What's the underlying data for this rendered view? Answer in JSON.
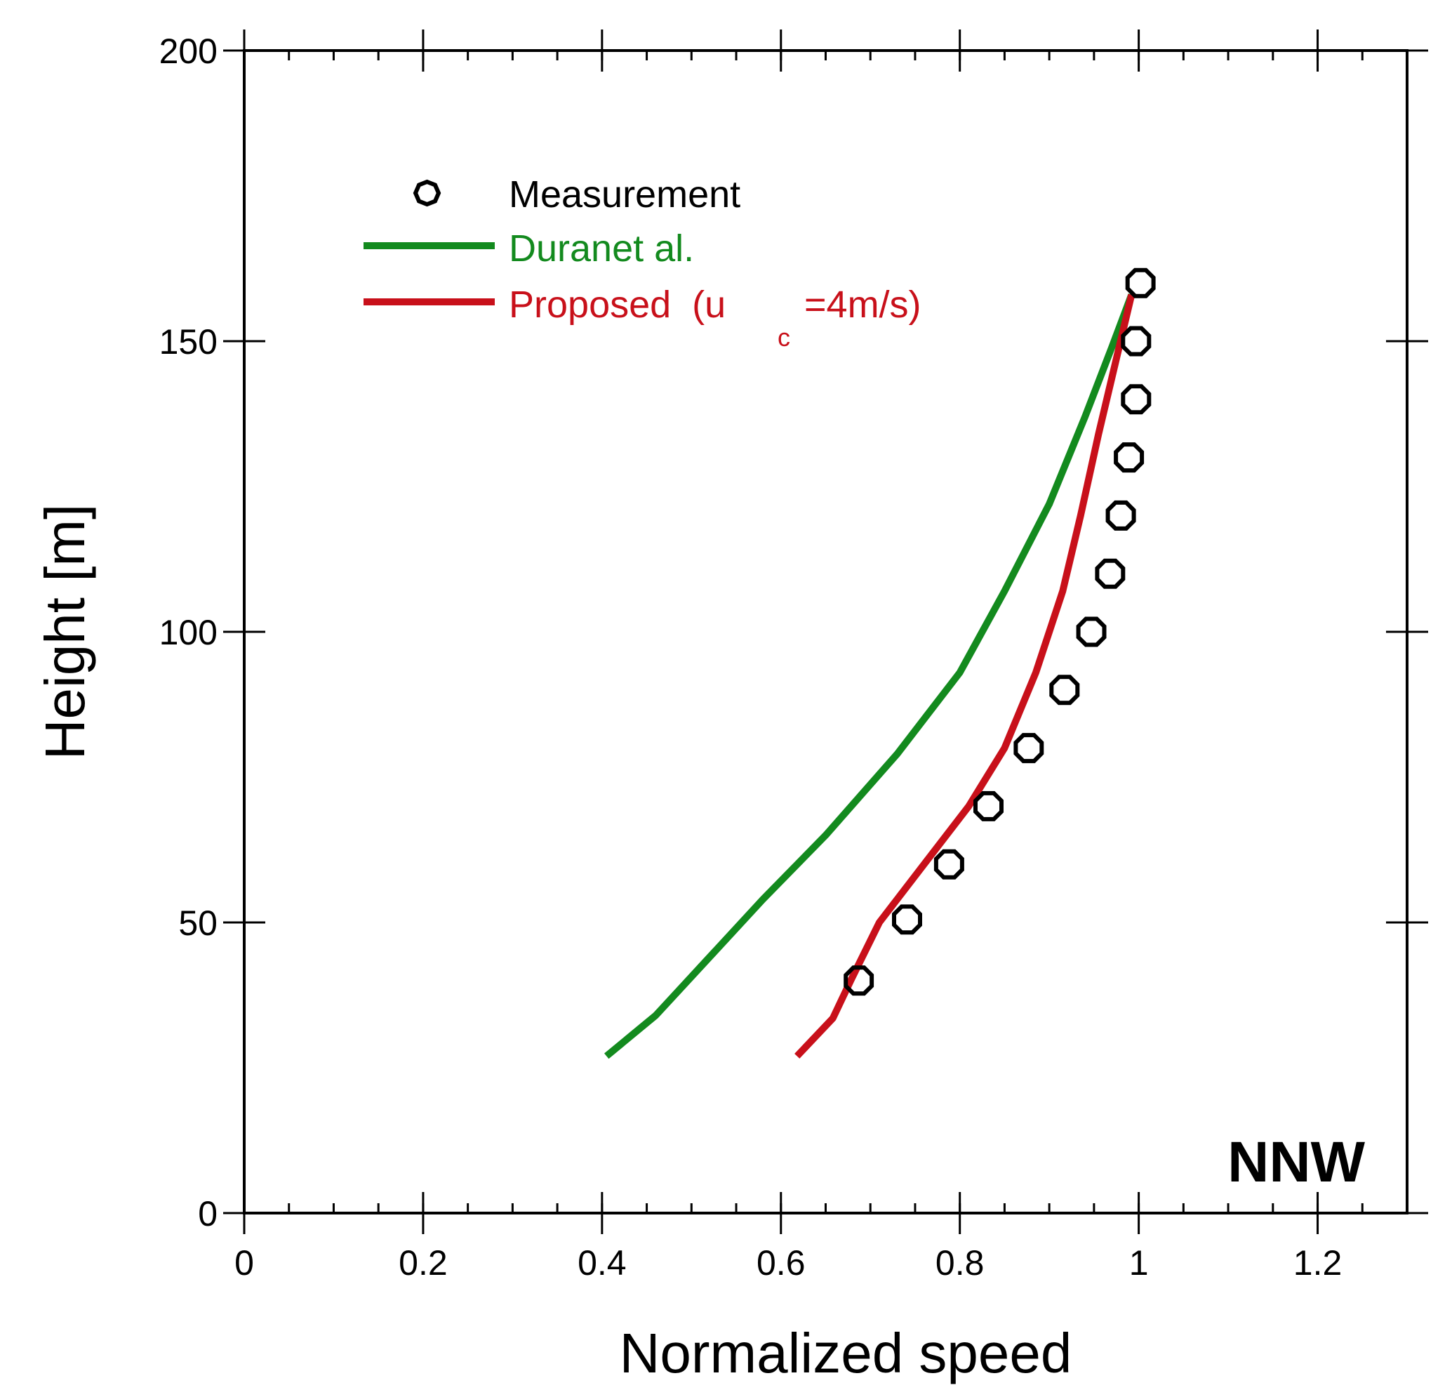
{
  "chart_data": {
    "type": "line",
    "xlabel": "Normalized speed",
    "ylabel": "Height [m]",
    "xlim": [
      0,
      1.3
    ],
    "ylim": [
      0,
      200
    ],
    "xticks": [
      0,
      0.2,
      0.4,
      0.6,
      0.8,
      1,
      1.2
    ],
    "xtick_labels": [
      "0",
      "0.2",
      "0.4",
      "0.6",
      "0.8",
      "1",
      "1.2"
    ],
    "yticks": [
      0,
      50,
      100,
      150,
      200
    ],
    "ytick_labels": [
      "0",
      "50",
      "100",
      "150",
      "200"
    ],
    "x_minor_step": 0.05,
    "grid": false,
    "legend_position": "top-left",
    "annotation": "NNW",
    "series": [
      {
        "name": "Measurement",
        "kind": "scatter",
        "color": "#000000",
        "x": [
          0.687,
          0.741,
          0.788,
          0.832,
          0.877,
          0.917,
          0.947,
          0.968,
          0.98,
          0.989,
          0.997,
          0.997,
          1.002
        ],
        "y": [
          40,
          50.5,
          60,
          70,
          80,
          90,
          100,
          110,
          120,
          130,
          140,
          150,
          160
        ]
      },
      {
        "name": "Duranet al.",
        "kind": "line",
        "color": "#138a1e",
        "x": [
          0.405,
          0.46,
          0.52,
          0.58,
          0.65,
          0.73,
          0.8,
          0.85,
          0.9,
          0.94,
          0.97,
          0.992
        ],
        "y": [
          27,
          34,
          44,
          54,
          65,
          79,
          93,
          107,
          122,
          137,
          149,
          158
        ]
      },
      {
        "name": "Proposed  (u",
        "name_subscript": "c",
        "name_suffix": "=4m/s)",
        "kind": "line",
        "color": "#c8101a",
        "x": [
          0.618,
          0.658,
          0.678,
          0.71,
          0.76,
          0.81,
          0.85,
          0.885,
          0.915,
          0.935,
          0.955,
          0.975,
          0.992
        ],
        "y": [
          27,
          33.5,
          40,
          50,
          60,
          70,
          80,
          93,
          107,
          120,
          134,
          147,
          158
        ]
      }
    ]
  }
}
